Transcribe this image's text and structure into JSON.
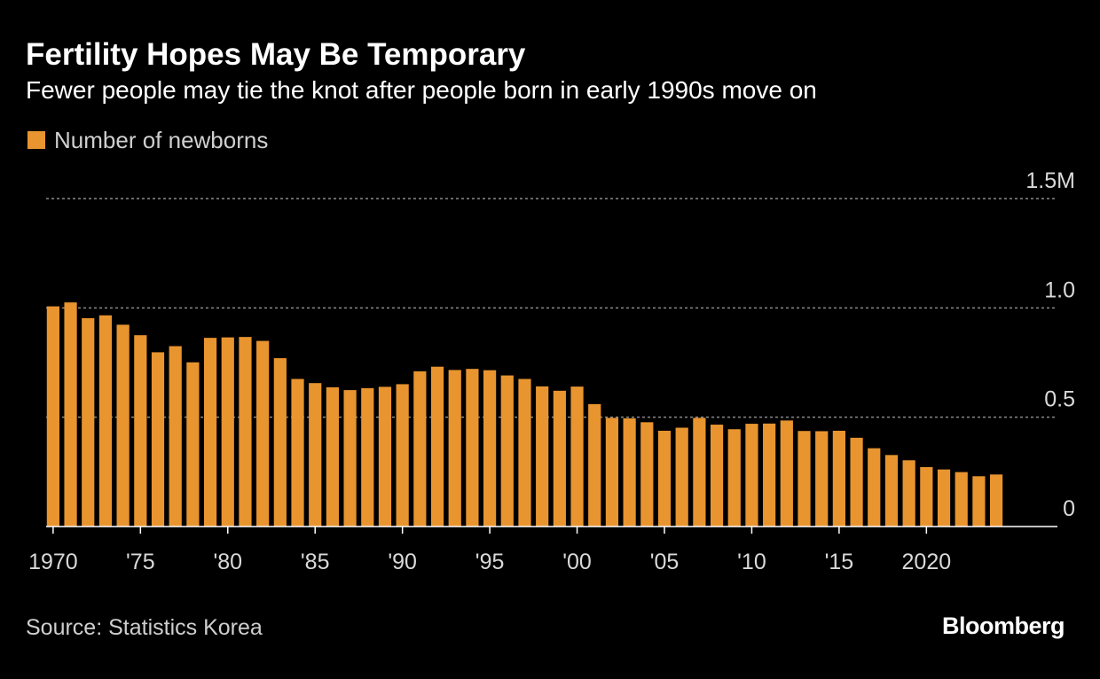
{
  "header": {
    "title": "Fertility Hopes May Be Temporary",
    "subtitle": "Fewer people may tie the knot after people born in early 1990s move on"
  },
  "legend": {
    "label": "Number of newborns"
  },
  "footer": {
    "source": "Source: Statistics Korea",
    "brand": "Bloomberg"
  },
  "colors": {
    "bar": "#E8942F",
    "background": "#000000",
    "grid": "#8a8a8a",
    "axis": "#ffffff",
    "tick_label": "#d9d9d9"
  },
  "chart_data": {
    "type": "bar",
    "title": "Fertility Hopes May Be Temporary",
    "subtitle": "Fewer people may tie the knot after people born in early 1990s move on",
    "xlabel": "",
    "ylabel": "",
    "grid": true,
    "legend_position": "top-left",
    "ylim": [
      0,
      1.5
    ],
    "y_ticks": [
      {
        "value": 0,
        "label": "0"
      },
      {
        "value": 0.5,
        "label": "0.5"
      },
      {
        "value": 1.0,
        "label": "1.0"
      },
      {
        "value": 1.5,
        "label": "1.5M"
      }
    ],
    "x_ticks": [
      {
        "year": 1970,
        "label": "1970"
      },
      {
        "year": 1975,
        "label": "'75"
      },
      {
        "year": 1980,
        "label": "'80"
      },
      {
        "year": 1985,
        "label": "'85"
      },
      {
        "year": 1990,
        "label": "'90"
      },
      {
        "year": 1995,
        "label": "'95"
      },
      {
        "year": 2000,
        "label": "'00"
      },
      {
        "year": 2005,
        "label": "'05"
      },
      {
        "year": 2010,
        "label": "'10"
      },
      {
        "year": 2015,
        "label": "'15"
      },
      {
        "year": 2020,
        "label": "2020"
      }
    ],
    "x_range": [
      1969.6,
      2027.5
    ],
    "series": [
      {
        "name": "Number of newborns",
        "unit": "million",
        "years": [
          1970,
          1971,
          1972,
          1973,
          1974,
          1975,
          1976,
          1977,
          1978,
          1979,
          1980,
          1981,
          1982,
          1983,
          1984,
          1985,
          1986,
          1987,
          1988,
          1989,
          1990,
          1991,
          1992,
          1993,
          1994,
          1995,
          1996,
          1997,
          1998,
          1999,
          2000,
          2001,
          2002,
          2003,
          2004,
          2005,
          2006,
          2007,
          2008,
          2009,
          2010,
          2011,
          2012,
          2013,
          2014,
          2015,
          2016,
          2017,
          2018,
          2019,
          2020,
          2021,
          2022,
          2023,
          2024
        ],
        "values": [
          1.007,
          1.025,
          0.953,
          0.966,
          0.923,
          0.875,
          0.797,
          0.825,
          0.751,
          0.863,
          0.865,
          0.867,
          0.849,
          0.77,
          0.675,
          0.656,
          0.637,
          0.624,
          0.633,
          0.639,
          0.651,
          0.71,
          0.731,
          0.716,
          0.721,
          0.715,
          0.691,
          0.675,
          0.641,
          0.621,
          0.64,
          0.56,
          0.497,
          0.495,
          0.477,
          0.438,
          0.452,
          0.497,
          0.466,
          0.445,
          0.47,
          0.471,
          0.485,
          0.437,
          0.436,
          0.438,
          0.406,
          0.358,
          0.327,
          0.303,
          0.272,
          0.261,
          0.249,
          0.23,
          0.238
        ]
      }
    ]
  }
}
